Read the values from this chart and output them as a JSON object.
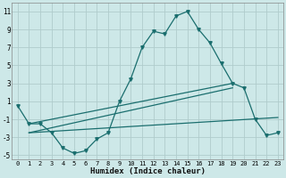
{
  "xlabel": "Humidex (Indice chaleur)",
  "bg_color": "#cde8e8",
  "grid_color": "#b0cccc",
  "line_color": "#1a6e6e",
  "xlim": [
    -0.5,
    23.5
  ],
  "ylim": [
    -5.5,
    12.0
  ],
  "xticks": [
    0,
    1,
    2,
    3,
    4,
    5,
    6,
    7,
    8,
    9,
    10,
    11,
    12,
    13,
    14,
    15,
    16,
    17,
    18,
    19,
    20,
    21,
    22,
    23
  ],
  "yticks": [
    -5,
    -3,
    -1,
    1,
    3,
    5,
    7,
    9,
    11
  ],
  "main_line_x": [
    0,
    1,
    2,
    3,
    4,
    5,
    6,
    7,
    8,
    9,
    10,
    11,
    12,
    13,
    14,
    15,
    16,
    17,
    18,
    19,
    20,
    21,
    22,
    23
  ],
  "main_line_y": [
    0.5,
    -1.5,
    -1.5,
    -2.5,
    -4.2,
    -4.8,
    -4.5,
    -3.2,
    -2.5,
    1.0,
    3.5,
    7.0,
    8.8,
    8.5,
    10.5,
    11.0,
    9.0,
    7.5,
    5.2,
    3.0,
    2.5,
    -1.0,
    -2.8,
    -2.5
  ],
  "line2_x": [
    1,
    19
  ],
  "line2_y": [
    -1.5,
    3.0
  ],
  "line3_x": [
    1,
    23
  ],
  "line3_y": [
    -2.5,
    -0.8
  ],
  "line4_x": [
    1,
    19
  ],
  "line4_y": [
    -2.5,
    2.5
  ]
}
